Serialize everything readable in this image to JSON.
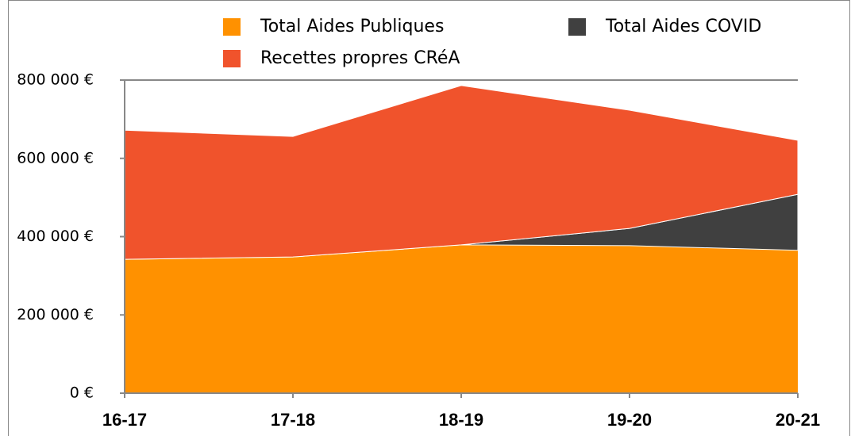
{
  "chart_data": {
    "type": "stacked_area",
    "categories": [
      "16-17",
      "17-18",
      "18-19",
      "19-20",
      "20-21"
    ],
    "series": [
      {
        "name": "Total Aides Publiques",
        "color": "#ff9100",
        "values": [
          342000,
          348000,
          379000,
          377000,
          365000
        ]
      },
      {
        "name": "Total Aides COVID",
        "color": "#404040",
        "values": [
          0,
          0,
          0,
          44000,
          143000
        ]
      },
      {
        "name": "Recettes propres CRéA",
        "color": "#f0532c",
        "values": [
          330000,
          308000,
          407000,
          302000,
          138000
        ]
      }
    ],
    "ylim": [
      0,
      800000
    ],
    "yticks": [
      {
        "value": 0,
        "label": "0 €"
      },
      {
        "value": 200000,
        "label": "200 000 €"
      },
      {
        "value": 400000,
        "label": "400 000 €"
      },
      {
        "value": 600000,
        "label": "600 000 €"
      },
      {
        "value": 800000,
        "label": "800 000 €"
      }
    ],
    "legend": "top"
  }
}
